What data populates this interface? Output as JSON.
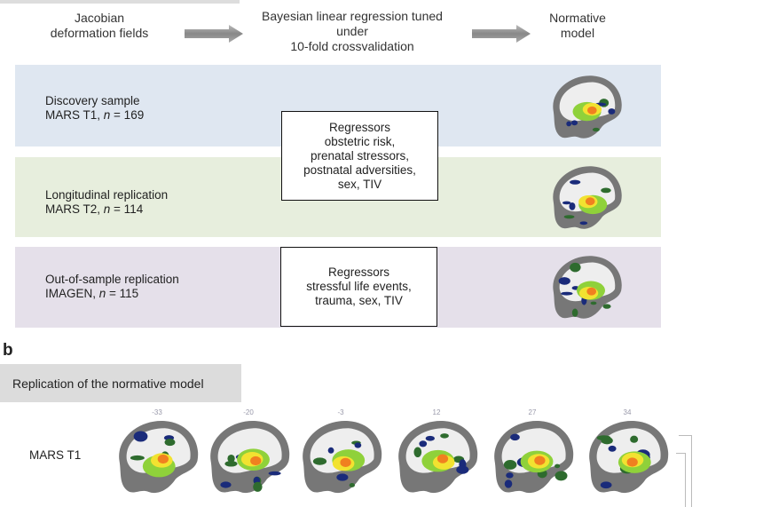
{
  "panel_a": {
    "pipeline": {
      "input": "Jacobian\ndeformation fields",
      "method": "Bayesian linear regression tuned\nunder\n10-fold crossvalidation",
      "output": "Normative\nmodel"
    },
    "samples": [
      {
        "name": "Discovery sample",
        "detail_prefix": "MARS T1, ",
        "n": "n",
        "n_value": " = 169",
        "color": "#dfe7f1"
      },
      {
        "name": "Longitudinal replication",
        "detail_prefix": "MARS T2, ",
        "n": "n",
        "n_value": " = 114",
        "color": "#e7eedd"
      },
      {
        "name": "Out-of-sample replication",
        "detail_prefix": "IMAGEN, ",
        "n": "n",
        "n_value": " = 115",
        "color": "#e5e0ea"
      }
    ],
    "regressor_boxes": [
      "Regressors\nobstetric risk,\nprenatal stressors,\npostnatal adversities,\nsex, TIV",
      "Regressors\nstressful life events,\ntrauma, sex, TIV"
    ]
  },
  "panel_b": {
    "label": "b",
    "title": "Replication of the normative model",
    "row_label": "MARS T1",
    "slice_numbers": [
      "-33",
      "-20",
      "-3",
      "12",
      "27",
      "34"
    ]
  }
}
